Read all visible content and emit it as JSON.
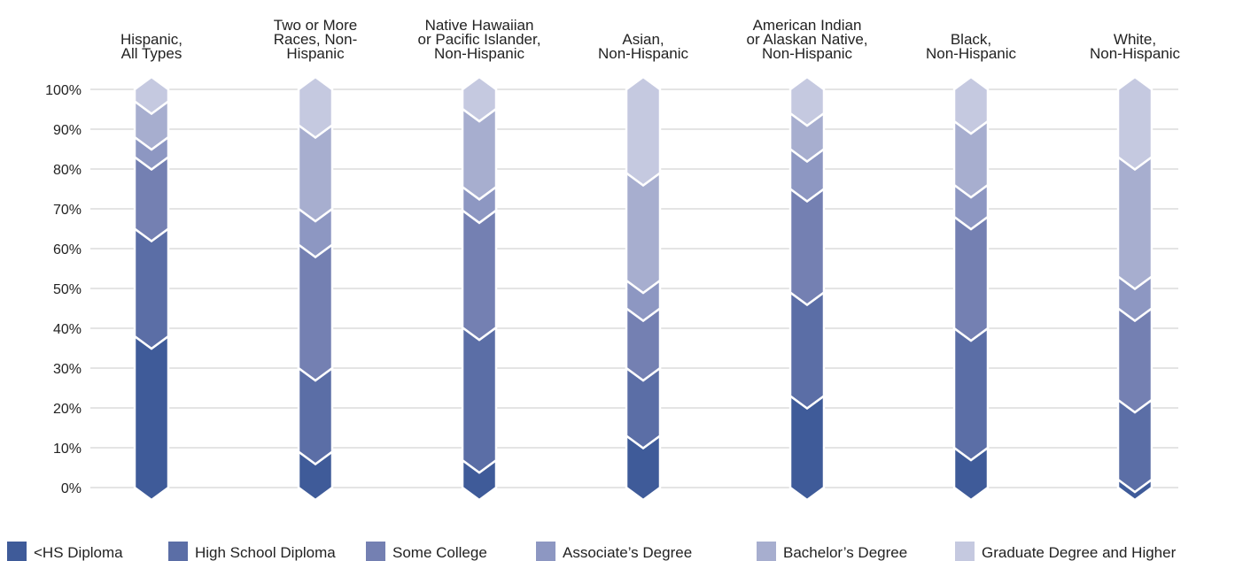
{
  "chart_data": {
    "type": "bar",
    "stacked": true,
    "categories": [
      [
        "Hispanic,",
        "All Types"
      ],
      [
        "Two or More",
        "Races, Non-",
        "Hispanic"
      ],
      [
        "Native Hawaiian",
        "or Pacific Islander,",
        "Non-Hispanic"
      ],
      [
        "Asian,",
        "Non-Hispanic"
      ],
      [
        "American Indian",
        "or Alaskan Native,",
        "Non-Hispanic"
      ],
      [
        "Black,",
        "Non-Hispanic"
      ],
      [
        "White,",
        "Non-Hispanic"
      ]
    ],
    "series": [
      {
        "name": "<HS Diploma",
        "color": "#3f5b99",
        "values": [
          38,
          9,
          7,
          13,
          23,
          10,
          2
        ]
      },
      {
        "name": "High School Diploma",
        "color": "#5b6ea6",
        "values": [
          27,
          21,
          34,
          17,
          26,
          30,
          20
        ]
      },
      {
        "name": "Some College",
        "color": "#7480b2",
        "values": [
          18,
          31,
          30,
          15,
          26,
          28,
          23
        ]
      },
      {
        "name": "Associate’s Degree",
        "color": "#8d97c2",
        "values": [
          5,
          9,
          6,
          7,
          10,
          8,
          8
        ]
      },
      {
        "name": "Bachelor’s Degree",
        "color": "#a7aecf",
        "values": [
          9,
          21,
          20,
          27,
          9,
          16,
          30
        ]
      },
      {
        "name": "Graduate Degree and Higher",
        "color": "#c5c9e0",
        "values": [
          3,
          9,
          5,
          21,
          6,
          8,
          17
        ]
      }
    ],
    "ylim": [
      0,
      100
    ],
    "yticks": [
      "0%",
      "10%",
      "20%",
      "30%",
      "40%",
      "50%",
      "60%",
      "70%",
      "80%",
      "90%",
      "100%"
    ],
    "grid": true,
    "legend": "bottom"
  }
}
